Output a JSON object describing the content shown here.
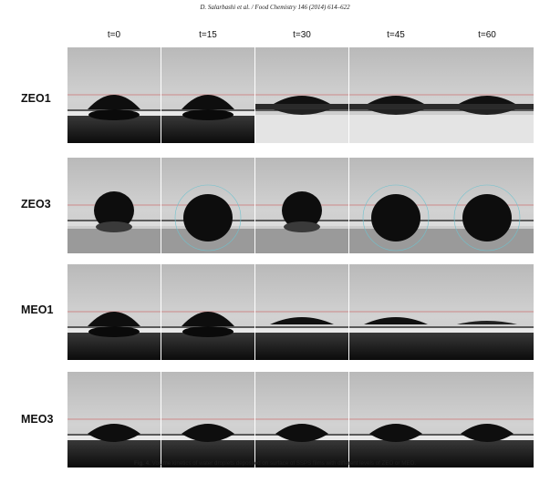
{
  "header": "D. Salarbashi et al. / Food Chemistry 146 (2014) 614–622",
  "columns": [
    "t=0",
    "t=15",
    "t=30",
    "t=45",
    "t=60"
  ],
  "rows": [
    {
      "label": "ZEO1",
      "shapes": [
        "flat",
        "flat",
        "sunk",
        "sunk",
        "sunk"
      ]
    },
    {
      "label": "ZEO3",
      "shapes": [
        "round",
        "round-sunk",
        "round",
        "round-sunk",
        "round-sunk"
      ]
    },
    {
      "label": "MEO1",
      "shapes": [
        "flat",
        "flat",
        "thin",
        "thin",
        "film"
      ]
    },
    {
      "label": "MEO3",
      "shapes": [
        "lens",
        "lens",
        "lens",
        "lens",
        "lens"
      ]
    }
  ],
  "caption": {
    "label": "Fig. 4.",
    "text": "Volume kinetics of water droplets deposited on surface of SSPS films with different levels of ZEO or MEO."
  }
}
